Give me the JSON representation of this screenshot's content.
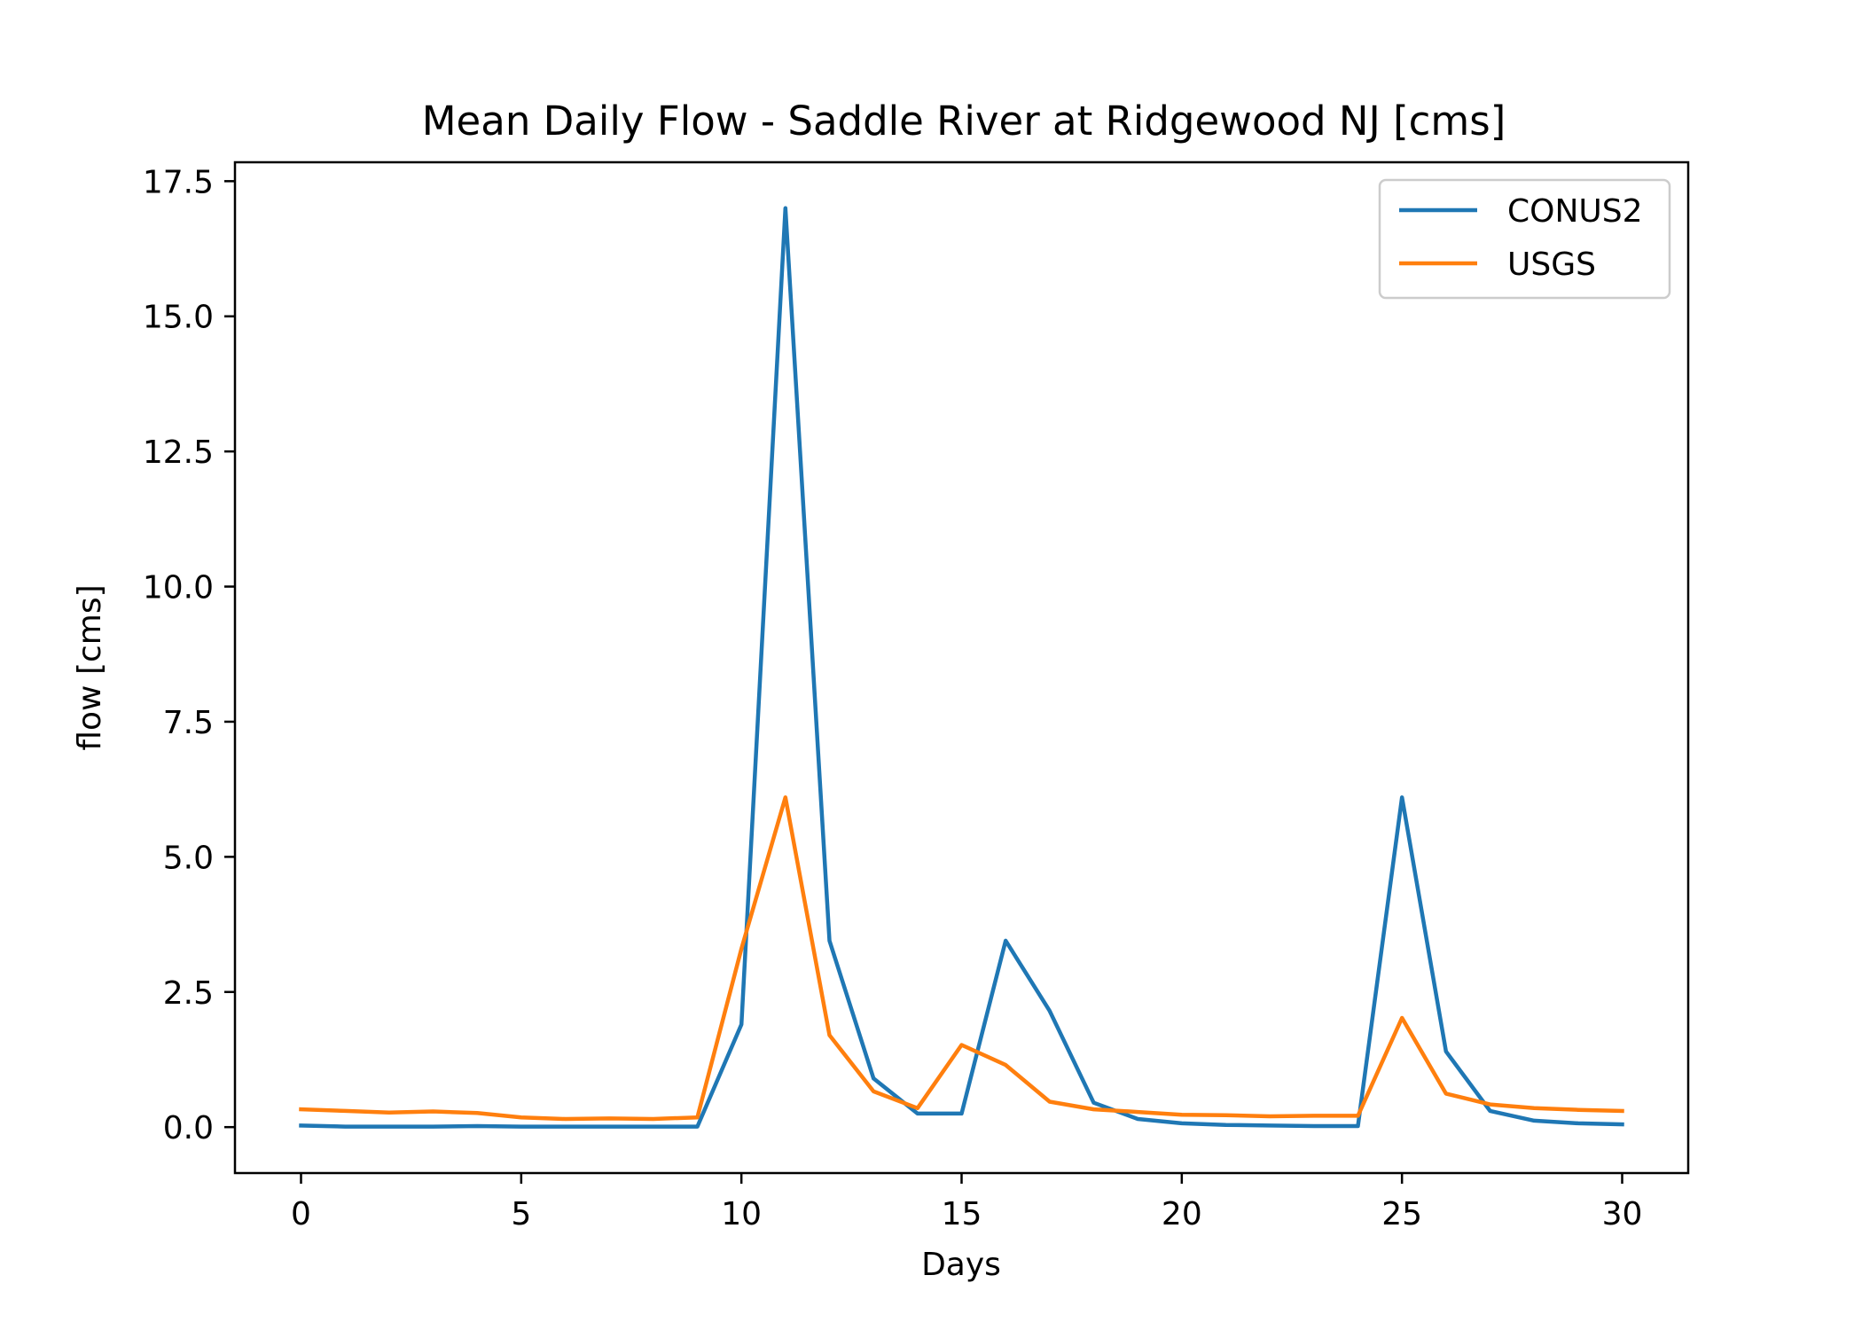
{
  "chart_data": {
    "type": "line",
    "title": "Mean Daily Flow - Saddle River at Ridgewood NJ [cms]",
    "xlabel": "Days",
    "ylabel": "flow [cms]",
    "xlim": [
      -1.5,
      31.5
    ],
    "ylim": [
      -0.85,
      17.85
    ],
    "xticks": [
      0,
      5,
      10,
      15,
      20,
      25,
      30
    ],
    "xtick_labels": [
      "0",
      "5",
      "10",
      "15",
      "20",
      "25",
      "30"
    ],
    "yticks": [
      0,
      2.5,
      5,
      7.5,
      10,
      12.5,
      15,
      17.5
    ],
    "ytick_labels": [
      "0.0",
      "2.5",
      "5.0",
      "7.5",
      "10.0",
      "12.5",
      "15.0",
      "17.5"
    ],
    "grid": false,
    "legend_position": "top-right",
    "x": [
      0,
      1,
      2,
      3,
      4,
      5,
      6,
      7,
      8,
      9,
      10,
      11,
      12,
      13,
      14,
      15,
      16,
      17,
      18,
      19,
      20,
      21,
      22,
      23,
      24,
      25,
      26,
      27,
      28,
      29,
      30
    ],
    "series": [
      {
        "name": "CONUS2",
        "color": "#1f77b4",
        "values": [
          0.03,
          0.01,
          0.01,
          0.01,
          0.02,
          0.01,
          0.01,
          0.01,
          0.01,
          0.01,
          1.9,
          17.0,
          3.45,
          0.9,
          0.25,
          0.25,
          3.45,
          2.15,
          0.45,
          0.15,
          0.07,
          0.04,
          0.03,
          0.02,
          0.02,
          6.1,
          1.4,
          0.3,
          0.12,
          0.07,
          0.05
        ]
      },
      {
        "name": "USGS",
        "color": "#ff7f0e",
        "values": [
          0.33,
          0.3,
          0.27,
          0.29,
          0.26,
          0.18,
          0.15,
          0.16,
          0.15,
          0.18,
          3.3,
          6.1,
          1.7,
          0.66,
          0.35,
          1.52,
          1.15,
          0.47,
          0.33,
          0.28,
          0.23,
          0.22,
          0.2,
          0.21,
          0.21,
          2.02,
          0.62,
          0.42,
          0.35,
          0.32,
          0.3
        ]
      }
    ]
  }
}
